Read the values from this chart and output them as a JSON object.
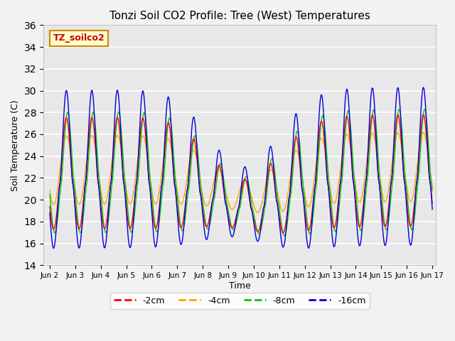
{
  "title": "Tonzi Soil CO2 Profile: Tree (West) Temperatures",
  "ylabel": "Soil Temperature (C)",
  "xlabel": "Time",
  "ylim": [
    14,
    36
  ],
  "yticks": [
    14,
    16,
    18,
    20,
    22,
    24,
    26,
    28,
    30,
    32,
    34,
    36
  ],
  "legend_label": "TZ_soilco2",
  "colors": {
    "-2cm": "#ff0000",
    "-4cm": "#ffa500",
    "-8cm": "#00cc00",
    "-16cm": "#0000dd"
  },
  "plot_bg": "#e8e8e8",
  "fig_bg": "#f2f2f2",
  "start_day": 2,
  "end_day": 17,
  "n_points": 1500,
  "xtick_labels": [
    "Jun 2",
    "Jun 3",
    "Jun 4",
    "Jun 5",
    "Jun 6",
    "Jun 7",
    "Jun 8",
    "Jun 9",
    "Jun 10",
    "Jun 11",
    "Jun 12",
    "Jun 13",
    "Jun 14",
    "Jun 15",
    "Jun 16",
    "Jun 17"
  ],
  "figsize": [
    6.4,
    4.8
  ],
  "dpi": 100
}
